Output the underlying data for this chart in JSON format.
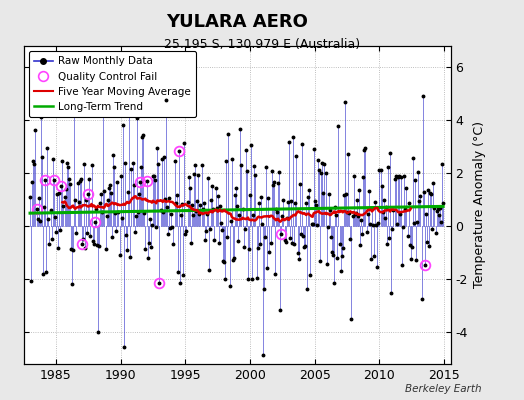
{
  "title": "YULARA AERO",
  "subtitle": "25.195 S, 130.979 E (Australia)",
  "ylabel": "Temperature Anomaly (°C)",
  "watermark": "Berkeley Earth",
  "xlim": [
    1982.5,
    2015.5
  ],
  "ylim": [
    -5.2,
    6.8
  ],
  "yticks": [
    -4,
    -2,
    0,
    2,
    4,
    6
  ],
  "xticks": [
    1985,
    1990,
    1995,
    2000,
    2005,
    2010,
    2015
  ],
  "bg_color": "#e8e8e8",
  "plot_bg_color": "#ffffff",
  "raw_color": "#3333cc",
  "qc_color": "#ff44ff",
  "moving_avg_color": "#dd0000",
  "trend_color": "#00aa00",
  "trend_y": 0.62,
  "seed": 17
}
